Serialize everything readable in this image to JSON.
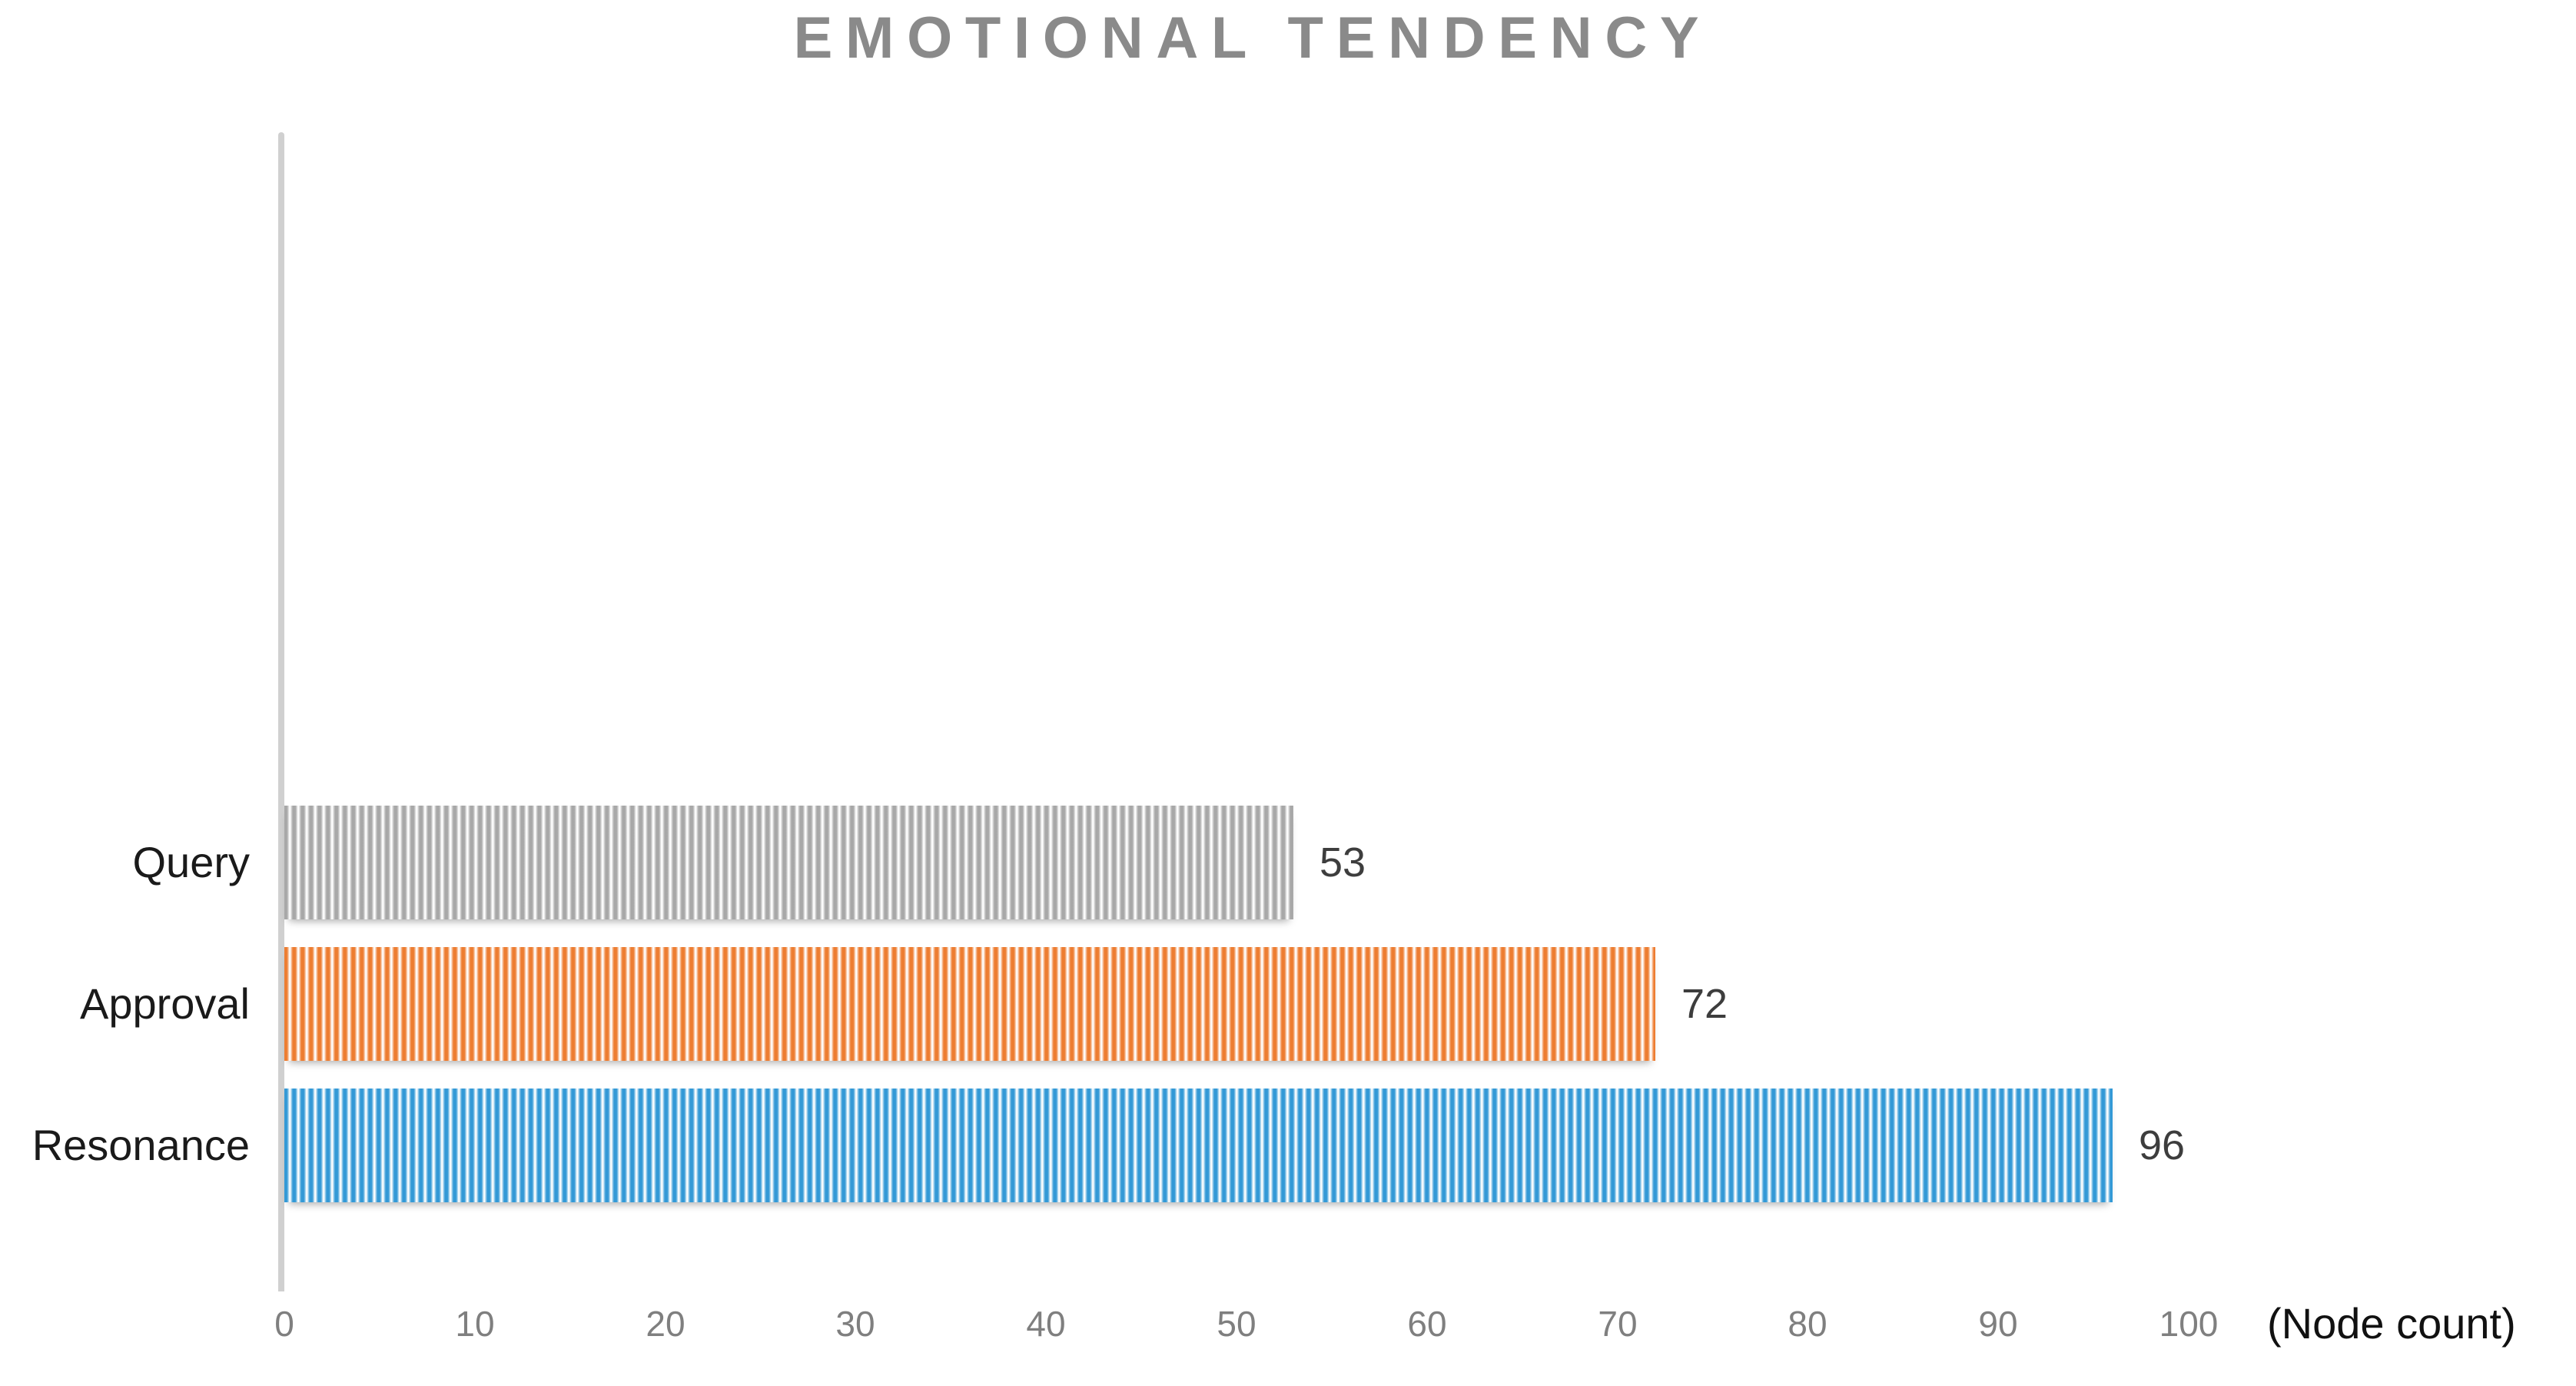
{
  "chart_data": {
    "type": "bar",
    "orientation": "horizontal",
    "title": "EMOTIONAL TENDENCY",
    "categories": [
      "Query",
      "Approval",
      "Resonance"
    ],
    "values": [
      53,
      72,
      96
    ],
    "value_labels": [
      "53",
      "72",
      "96"
    ],
    "bar_colors": [
      "#a8a8a8",
      "#ed7d31",
      "#3399d6"
    ],
    "bar_pattern": "vertical-stripes",
    "x_ticks": [
      0,
      10,
      20,
      30,
      40,
      50,
      60,
      70,
      80,
      90,
      100
    ],
    "xlim": [
      0,
      100
    ],
    "x_axis_unit": "(Node count)",
    "xlabel": "",
    "ylabel": "",
    "grid": false,
    "legend": false,
    "colors": {
      "title": "#8a8a8a",
      "category_label": "#1a1a1a",
      "value_label": "#3d3d3d",
      "tick_label": "#7f7f7f",
      "axis_line": "#d0d0d0",
      "background": "#ffffff"
    }
  }
}
